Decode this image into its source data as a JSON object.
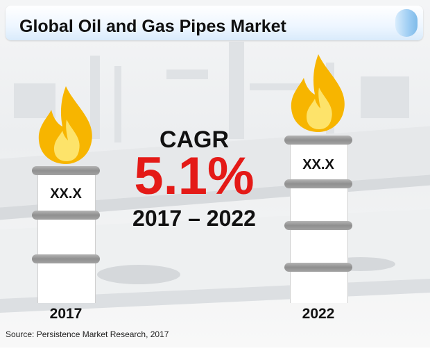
{
  "title": "Global Oil and Gas Pipes Market",
  "cagr": {
    "label": "CAGR",
    "value": "5.1%",
    "period": "2017 – 2022"
  },
  "columns": [
    {
      "year": "2017",
      "value": "XX.X"
    },
    {
      "year": "2022",
      "value": "XX.X"
    }
  ],
  "source": "Source: Persistence Market Research, 2017",
  "colors": {
    "cagr_value": "#e41a17",
    "flame_outer": "#f7b500",
    "flame_inner": "#fde36a",
    "title_accent": "#9ecdf3"
  },
  "icons": [
    "flame-icon"
  ]
}
